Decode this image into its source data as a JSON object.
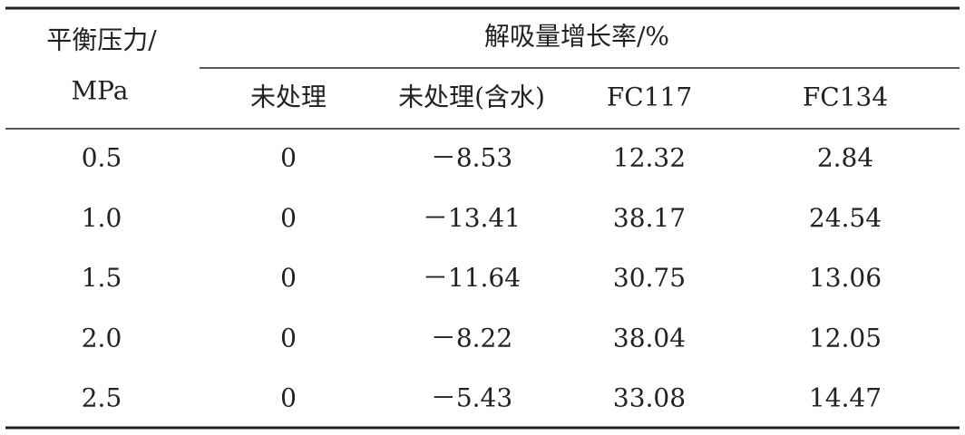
{
  "table": {
    "header": {
      "pressure": [
        "平衡压力/",
        "MPa"
      ],
      "group": "解吸量增长率/%",
      "columns": [
        "未处理",
        "未处理(含水)",
        "FC117",
        "FC134"
      ]
    },
    "rows": [
      [
        "0.5",
        "0",
        "－8.53",
        "12.32",
        "2.84"
      ],
      [
        "1.0",
        "0",
        "－13.41",
        "38.17",
        "24.54"
      ],
      [
        "1.5",
        "0",
        "－11.64",
        "30.75",
        "13.06"
      ],
      [
        "2.0",
        "0",
        "－8.22",
        "38.04",
        "12.05"
      ],
      [
        "2.5",
        "0",
        "－5.43",
        "33.08",
        "14.47"
      ]
    ]
  }
}
